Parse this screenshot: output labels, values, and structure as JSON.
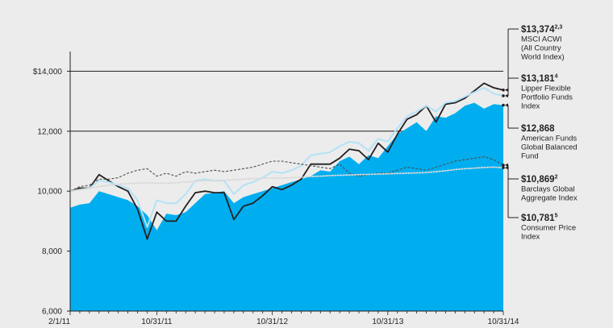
{
  "chart_data": {
    "type": "area",
    "title": "",
    "xlabel": "",
    "ylabel": "",
    "ylim": [
      6000,
      16000
    ],
    "grid": "horizontal lines at 12,000 and 14,000",
    "legend": "right-side callouts",
    "x_tick_labels": [
      "2/1/11",
      "10/31/11",
      "10/31/12",
      "10/31/13",
      "10/31/14"
    ],
    "x_tick_months": [
      0,
      9,
      21,
      33,
      45
    ],
    "x_month_count": 46,
    "y_ticks": [
      6000,
      8000,
      10000,
      12000,
      14000
    ],
    "y_tick_labels": [
      "6,000",
      "8,000",
      "10,000",
      "12,000",
      "$14,000"
    ],
    "series": [
      {
        "key": "fund",
        "style": "area",
        "color": "#00aeef",
        "value_label": "$12,868",
        "value_sup": "",
        "name_lines": [
          "American Funds",
          "Global Balanced",
          "Fund"
        ],
        "values": [
          9450,
          9550,
          9600,
          10000,
          9900,
          9800,
          9700,
          9500,
          9200,
          8700,
          9250,
          9200,
          9300,
          9600,
          9900,
          9950,
          10000,
          9600,
          9800,
          9900,
          10000,
          10100,
          10200,
          10300,
          10400,
          10500,
          10700,
          10650,
          11000,
          11150,
          10900,
          11200,
          11100,
          11500,
          11900,
          12100,
          12300,
          12000,
          12500,
          12450,
          12600,
          12850,
          12950,
          12750,
          12900,
          12868
        ]
      },
      {
        "key": "msci",
        "style": "line",
        "color": "#231f20",
        "value_label": "$13,374",
        "value_sup": "2,3",
        "name_lines": [
          "MSCI ACWI",
          "(All Country",
          "World Index)"
        ],
        "values": [
          10000,
          10100,
          10100,
          10550,
          10350,
          10150,
          10000,
          9400,
          8400,
          9300,
          9000,
          9000,
          9500,
          9950,
          10000,
          9950,
          9950,
          9050,
          9500,
          9600,
          9850,
          10150,
          10050,
          10200,
          10400,
          10900,
          10900,
          10900,
          11100,
          11400,
          11350,
          11050,
          11600,
          11300,
          11900,
          12400,
          12550,
          12850,
          12300,
          12900,
          12950,
          13100,
          13350,
          13600,
          13450,
          13374
        ]
      },
      {
        "key": "lipper",
        "style": "line",
        "color": "#b3e2f6",
        "value_label": "$13,181",
        "value_sup": "4",
        "name_lines": [
          "Lipper Flexible",
          "Portfolio Funds",
          "Index"
        ],
        "values": [
          10000,
          10050,
          10100,
          10350,
          10300,
          10200,
          10100,
          9700,
          8800,
          9700,
          9600,
          9600,
          9900,
          10350,
          10400,
          10350,
          10350,
          9900,
          10200,
          10300,
          10450,
          10650,
          10600,
          10700,
          10850,
          11200,
          11250,
          11300,
          11500,
          11650,
          11600,
          11350,
          11750,
          11650,
          12100,
          12500,
          12650,
          12850,
          12650,
          12950,
          13000,
          13150,
          13300,
          13450,
          13250,
          13181
        ]
      },
      {
        "key": "barclays",
        "style": "dashed",
        "color": "#4d4d4d",
        "value_label": "$10,869",
        "value_sup": "2",
        "name_lines": [
          "Barclays Global",
          "Aggregate Index"
        ],
        "values": [
          10000,
          10150,
          10200,
          10400,
          10400,
          10450,
          10600,
          10700,
          10750,
          10500,
          10600,
          10500,
          10650,
          10600,
          10650,
          10700,
          10650,
          10700,
          10750,
          10800,
          10900,
          11000,
          11000,
          10950,
          10900,
          10850,
          10800,
          10750,
          10900,
          10600,
          10500,
          10550,
          10600,
          10600,
          10700,
          10800,
          10750,
          10700,
          10800,
          10900,
          11000,
          11050,
          11100,
          11150,
          11050,
          10869
        ]
      },
      {
        "key": "cpi",
        "style": "dotted",
        "color": "#d9d9d9",
        "value_label": "$10,781",
        "value_sup": "5",
        "name_lines": [
          "Consumer Price",
          "Index"
        ],
        "values": [
          10000,
          10050,
          10100,
          10150,
          10200,
          10230,
          10250,
          10270,
          10280,
          10260,
          10270,
          10280,
          10300,
          10330,
          10350,
          10350,
          10360,
          10380,
          10400,
          10420,
          10430,
          10440,
          10430,
          10450,
          10470,
          10490,
          10500,
          10520,
          10530,
          10540,
          10550,
          10560,
          10570,
          10580,
          10590,
          10600,
          10610,
          10620,
          10650,
          10680,
          10720,
          10750,
          10770,
          10790,
          10800,
          10781
        ]
      }
    ]
  }
}
